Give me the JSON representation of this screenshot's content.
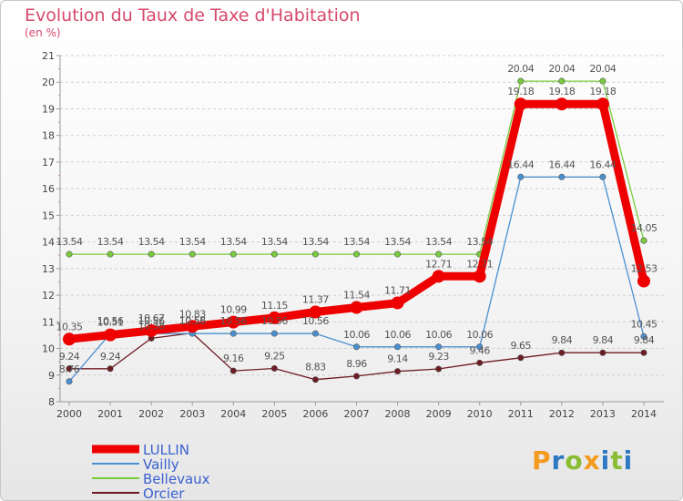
{
  "header": {
    "title": "Evolution du Taux de Taxe d'Habitation",
    "subtitle": "(en %)"
  },
  "brand": {
    "name": "Proxiti"
  },
  "chart_data": {
    "type": "line",
    "title": "Evolution du Taux de Taxe d'Habitation",
    "subtitle": "(en %)",
    "x": [
      "2000",
      "2001",
      "2002",
      "2003",
      "2004",
      "2005",
      "2006",
      "2007",
      "2008",
      "2009",
      "2010",
      "2011",
      "2012",
      "2013",
      "2014"
    ],
    "ylim": [
      8,
      21
    ],
    "yticks": [
      8,
      9,
      10,
      11,
      12,
      13,
      14,
      15,
      16,
      17,
      18,
      19,
      20,
      21
    ],
    "grid": "horizontal-dashed",
    "legend_position": "bottom-left",
    "series": [
      {
        "name": "LULLIN",
        "color": "#ee0000",
        "values": [
          10.35,
          10.51,
          10.67,
          10.83,
          10.99,
          11.15,
          11.37,
          11.54,
          11.71,
          12.71,
          12.71,
          19.18,
          19.18,
          19.18,
          12.53
        ],
        "labels": [
          "10.35",
          "10.51",
          "10.67",
          "10.83",
          "10.99",
          "11.15",
          "11.37",
          "11.54",
          "11.71",
          "12.71",
          "12.71",
          "19.18",
          "19.18",
          "19.18",
          "12.53"
        ]
      },
      {
        "name": "Vailly",
        "color": "#4a90d0",
        "values": [
          8.76,
          10.56,
          10.56,
          10.56,
          10.56,
          10.56,
          10.56,
          10.06,
          10.06,
          10.06,
          10.06,
          16.44,
          16.44,
          16.44,
          10.45
        ],
        "labels": [
          "8.76",
          "10.56",
          "10.56",
          "10.56",
          "10.56",
          "10.56",
          "10.56",
          "10.06",
          "10.06",
          "10.06",
          "10.06",
          "16.44",
          "16.44",
          "16.44",
          "10.45"
        ]
      },
      {
        "name": "Bellevaux",
        "color": "#7acb3c",
        "values": [
          13.54,
          13.54,
          13.54,
          13.54,
          13.54,
          13.54,
          13.54,
          13.54,
          13.54,
          13.54,
          13.54,
          20.04,
          20.04,
          20.04,
          14.05
        ],
        "labels": [
          "13.54",
          "13.54",
          "13.54",
          "13.54",
          "13.54",
          "13.54",
          "13.54",
          "13.54",
          "13.54",
          "13.54",
          "13.54",
          "20.04",
          "20.04",
          "20.04",
          "14.05"
        ]
      },
      {
        "name": "Orcier",
        "color": "#6e1c24",
        "values": [
          9.24,
          9.24,
          10.38,
          10.58,
          9.16,
          9.25,
          8.83,
          8.96,
          9.14,
          9.23,
          9.46,
          9.65,
          9.84,
          9.84,
          9.84
        ],
        "labels": [
          "9.24",
          "9.24",
          "10.38",
          "10.58",
          "9.16",
          "9.25",
          "8.83",
          "8.96",
          "9.14",
          "9.23",
          "9.46",
          "9.65",
          "9.84",
          "9.84",
          "9.84"
        ]
      }
    ]
  }
}
